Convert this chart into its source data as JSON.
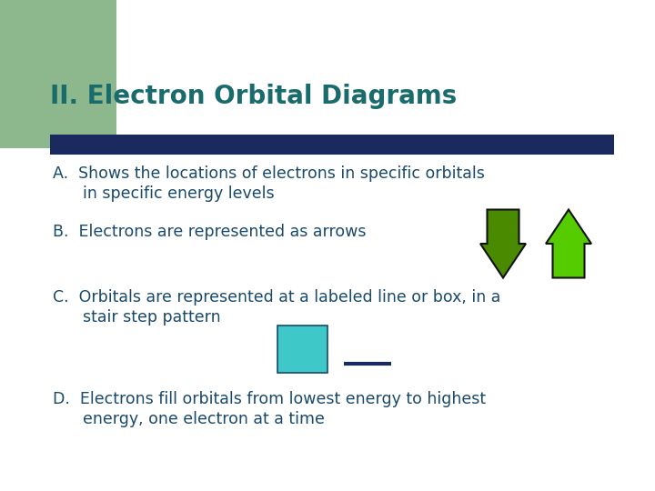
{
  "bg_color": "#ffffff",
  "green_rect_color": "#8db88d",
  "title": "II. Electron Orbital Diagrams",
  "title_color": "#1a6b6b",
  "title_fontsize": 20,
  "bar_color": "#1a2a5e",
  "text_color": "#1a4a6a",
  "body_fontsize": 12.5,
  "bullet_A_line1": "A.  Shows the locations of electrons in specific orbitals",
  "bullet_A_line2": "      in specific energy levels",
  "bullet_B": "B.  Electrons are represented as arrows",
  "bullet_C_line1": "C.  Orbitals are represented at a labeled line or box, in a",
  "bullet_C_line2": "      stair step pattern",
  "bullet_D_line1": "D.  Electrons fill orbitals from lowest energy to highest",
  "bullet_D_line2": "      energy, one electron at a time",
  "down_arrow_color": "#4a8a00",
  "up_arrow_color": "#55cc00",
  "cyan_box_color": "#3ec8c8",
  "line_color": "#1a2a5e"
}
